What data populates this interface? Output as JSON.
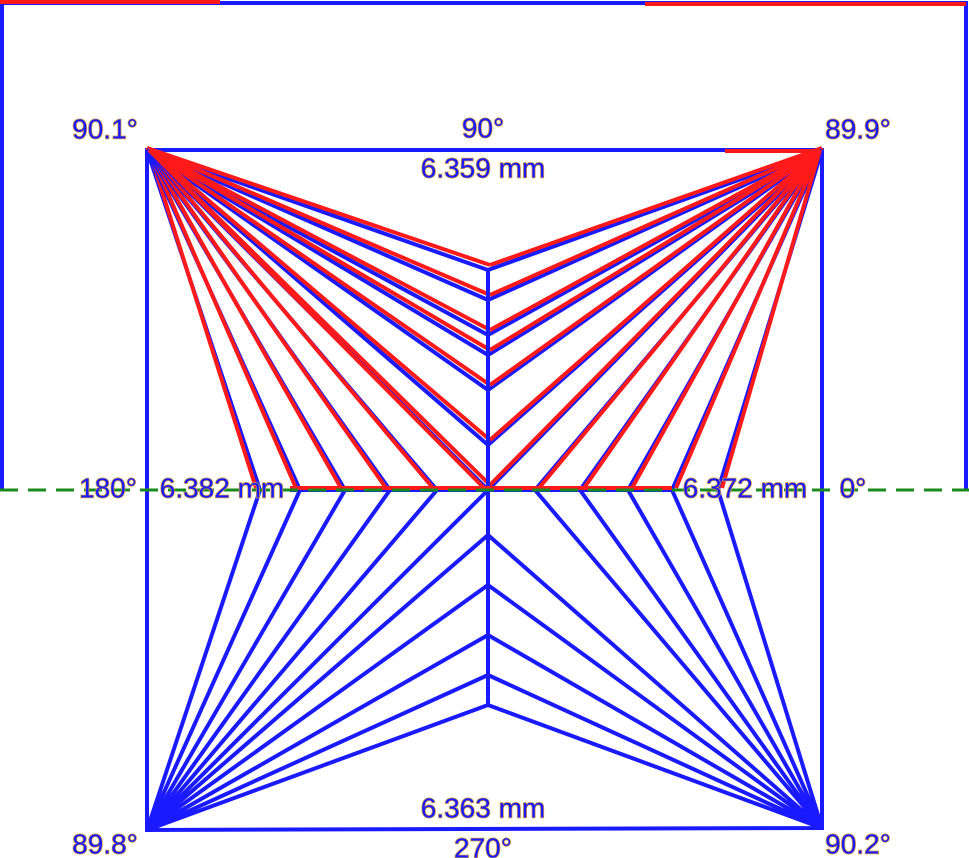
{
  "corners": {
    "top_left": "90.1°",
    "top_right": "89.9°",
    "bottom_left": "89.8°",
    "bottom_right": "90.2°"
  },
  "axes": {
    "top": "90°",
    "left": "180°",
    "right": "0°",
    "bottom": "270°"
  },
  "sides": {
    "top": "6.359 mm",
    "left": "6.382 mm",
    "right": "6.372 mm",
    "bottom": "6.363 mm"
  }
}
